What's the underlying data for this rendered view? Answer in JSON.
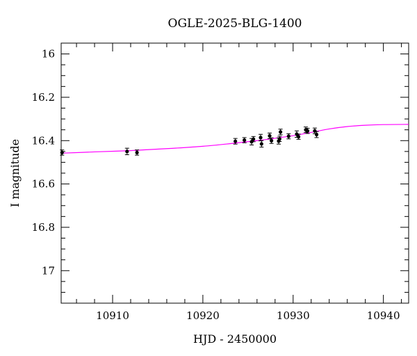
{
  "chart_data": {
    "type": "scatter",
    "title": "OGLE-2025-BLG-1400",
    "xlabel": "HJD - 2450000",
    "ylabel": "I magnitude",
    "xlim": [
      10904.3,
      10942.8
    ],
    "ylim": [
      17.15,
      15.95
    ],
    "y_inverted": true,
    "x_ticks": [
      10910,
      10920,
      10930,
      10940
    ],
    "y_ticks": [
      16,
      16.2,
      16.4,
      16.6,
      16.8,
      17
    ],
    "x_ticks_labels": [
      "10910",
      "10920",
      "10930",
      "10940"
    ],
    "y_ticks_labels": [
      "16",
      "16.2",
      "16.4",
      "16.6",
      "16.8",
      "17"
    ],
    "grid": false,
    "series": [
      {
        "kind": "points",
        "color": "#000000",
        "points": [
          {
            "x": 10904.4,
            "y": 16.455,
            "err": 0.012
          },
          {
            "x": 10911.6,
            "y": 16.45,
            "err": 0.015
          },
          {
            "x": 10912.7,
            "y": 16.455,
            "err": 0.012
          },
          {
            "x": 10923.6,
            "y": 16.403,
            "err": 0.013
          },
          {
            "x": 10924.6,
            "y": 16.398,
            "err": 0.012
          },
          {
            "x": 10925.4,
            "y": 16.405,
            "err": 0.015
          },
          {
            "x": 10925.6,
            "y": 16.393,
            "err": 0.012
          },
          {
            "x": 10926.4,
            "y": 16.386,
            "err": 0.015
          },
          {
            "x": 10926.5,
            "y": 16.415,
            "err": 0.015
          },
          {
            "x": 10927.4,
            "y": 16.378,
            "err": 0.013
          },
          {
            "x": 10927.6,
            "y": 16.4,
            "err": 0.013
          },
          {
            "x": 10928.4,
            "y": 16.402,
            "err": 0.014
          },
          {
            "x": 10928.5,
            "y": 16.392,
            "err": 0.012
          },
          {
            "x": 10928.6,
            "y": 16.36,
            "err": 0.013
          },
          {
            "x": 10929.5,
            "y": 16.38,
            "err": 0.012
          },
          {
            "x": 10930.4,
            "y": 16.37,
            "err": 0.015
          },
          {
            "x": 10930.6,
            "y": 16.382,
            "err": 0.012
          },
          {
            "x": 10931.4,
            "y": 16.35,
            "err": 0.013
          },
          {
            "x": 10931.6,
            "y": 16.355,
            "err": 0.012
          },
          {
            "x": 10932.4,
            "y": 16.355,
            "err": 0.013
          },
          {
            "x": 10932.6,
            "y": 16.372,
            "err": 0.014
          }
        ]
      },
      {
        "kind": "model",
        "color": "#ff00ff",
        "points": [
          [
            10904.3,
            16.458
          ],
          [
            10908,
            16.452
          ],
          [
            10912,
            16.446
          ],
          [
            10916,
            16.437
          ],
          [
            10920,
            16.426
          ],
          [
            10923,
            16.414
          ],
          [
            10926,
            16.4
          ],
          [
            10928,
            16.389
          ],
          [
            10930,
            16.377
          ],
          [
            10932,
            16.362
          ],
          [
            10934,
            16.346
          ],
          [
            10936,
            16.335
          ],
          [
            10938,
            16.329
          ],
          [
            10940,
            16.326
          ],
          [
            10942.8,
            16.325
          ]
        ]
      }
    ]
  }
}
